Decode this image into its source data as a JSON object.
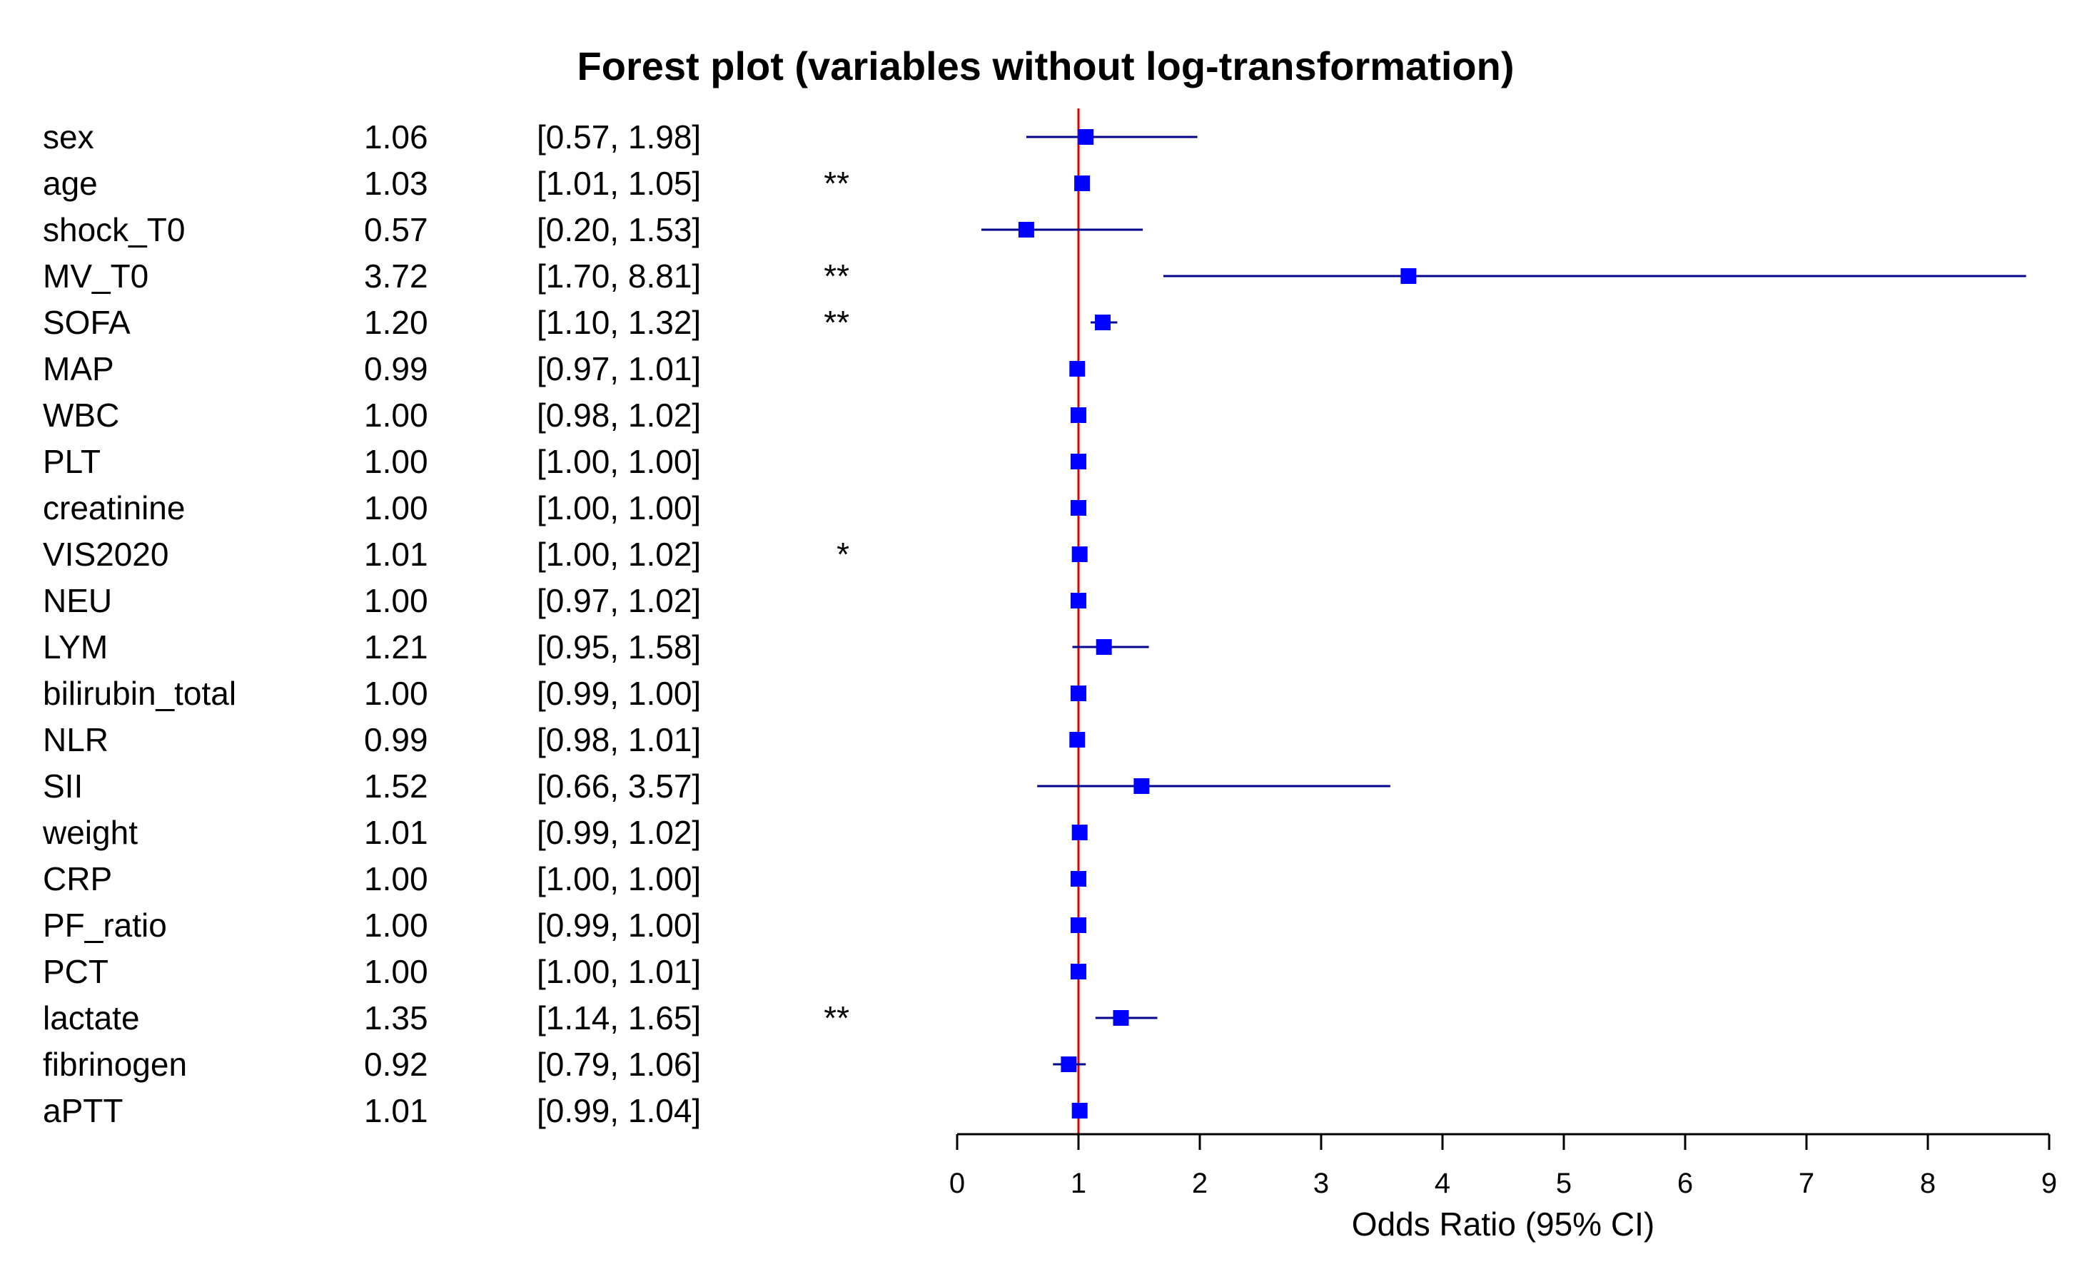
{
  "chart_data": {
    "type": "forest",
    "title": "Forest plot (variables without log-transformation)",
    "xlabel": "Odds Ratio (95% CI)",
    "xlim": [
      0,
      9
    ],
    "xticks": [
      "0",
      "1",
      "2",
      "3",
      "4",
      "5",
      "6",
      "7",
      "8",
      "9"
    ],
    "reference_line": 1,
    "colors": {
      "marker": "#0000ff",
      "ci_line": "#00008b",
      "reference": "#e00000"
    },
    "rows": [
      {
        "variable": "sex",
        "or_label": "1.06",
        "ci_label": "[0.57, 1.98]",
        "sig": "",
        "or": 1.06,
        "lo": 0.57,
        "hi": 1.98
      },
      {
        "variable": "age",
        "or_label": "1.03",
        "ci_label": "[1.01, 1.05]",
        "sig": "**",
        "or": 1.03,
        "lo": 1.01,
        "hi": 1.05
      },
      {
        "variable": "shock_T0",
        "or_label": "0.57",
        "ci_label": "[0.20, 1.53]",
        "sig": "",
        "or": 0.57,
        "lo": 0.2,
        "hi": 1.53
      },
      {
        "variable": "MV_T0",
        "or_label": "3.72",
        "ci_label": "[1.70, 8.81]",
        "sig": "**",
        "or": 3.72,
        "lo": 1.7,
        "hi": 8.81
      },
      {
        "variable": "SOFA",
        "or_label": "1.20",
        "ci_label": "[1.10, 1.32]",
        "sig": "**",
        "or": 1.2,
        "lo": 1.1,
        "hi": 1.32
      },
      {
        "variable": "MAP",
        "or_label": "0.99",
        "ci_label": "[0.97, 1.01]",
        "sig": "",
        "or": 0.99,
        "lo": 0.97,
        "hi": 1.01
      },
      {
        "variable": "WBC",
        "or_label": "1.00",
        "ci_label": "[0.98, 1.02]",
        "sig": "",
        "or": 1.0,
        "lo": 0.98,
        "hi": 1.02
      },
      {
        "variable": "PLT",
        "or_label": "1.00",
        "ci_label": "[1.00, 1.00]",
        "sig": "",
        "or": 1.0,
        "lo": 1.0,
        "hi": 1.0
      },
      {
        "variable": "creatinine",
        "or_label": "1.00",
        "ci_label": "[1.00, 1.00]",
        "sig": "",
        "or": 1.0,
        "lo": 1.0,
        "hi": 1.0
      },
      {
        "variable": "VIS2020",
        "or_label": "1.01",
        "ci_label": "[1.00, 1.02]",
        "sig": "*",
        "or": 1.01,
        "lo": 1.0,
        "hi": 1.02
      },
      {
        "variable": "NEU",
        "or_label": "1.00",
        "ci_label": "[0.97, 1.02]",
        "sig": "",
        "or": 1.0,
        "lo": 0.97,
        "hi": 1.02
      },
      {
        "variable": "LYM",
        "or_label": "1.21",
        "ci_label": "[0.95, 1.58]",
        "sig": "",
        "or": 1.21,
        "lo": 0.95,
        "hi": 1.58
      },
      {
        "variable": "bilirubin_total",
        "or_label": "1.00",
        "ci_label": "[0.99, 1.00]",
        "sig": "",
        "or": 1.0,
        "lo": 0.99,
        "hi": 1.0
      },
      {
        "variable": "NLR",
        "or_label": "0.99",
        "ci_label": "[0.98, 1.01]",
        "sig": "",
        "or": 0.99,
        "lo": 0.98,
        "hi": 1.01
      },
      {
        "variable": "SII",
        "or_label": "1.52",
        "ci_label": "[0.66, 3.57]",
        "sig": "",
        "or": 1.52,
        "lo": 0.66,
        "hi": 3.57
      },
      {
        "variable": "weight",
        "or_label": "1.01",
        "ci_label": "[0.99, 1.02]",
        "sig": "",
        "or": 1.01,
        "lo": 0.99,
        "hi": 1.02
      },
      {
        "variable": "CRP",
        "or_label": "1.00",
        "ci_label": "[1.00, 1.00]",
        "sig": "",
        "or": 1.0,
        "lo": 1.0,
        "hi": 1.0
      },
      {
        "variable": "PF_ratio",
        "or_label": "1.00",
        "ci_label": "[0.99, 1.00]",
        "sig": "",
        "or": 1.0,
        "lo": 0.99,
        "hi": 1.0
      },
      {
        "variable": "PCT",
        "or_label": "1.00",
        "ci_label": "[1.00, 1.01]",
        "sig": "",
        "or": 1.0,
        "lo": 1.0,
        "hi": 1.01
      },
      {
        "variable": "lactate",
        "or_label": "1.35",
        "ci_label": "[1.14, 1.65]",
        "sig": "**",
        "or": 1.35,
        "lo": 1.14,
        "hi": 1.65
      },
      {
        "variable": "fibrinogen",
        "or_label": "0.92",
        "ci_label": "[0.79, 1.06]",
        "sig": "",
        "or": 0.92,
        "lo": 0.79,
        "hi": 1.06
      },
      {
        "variable": "aPTT",
        "or_label": "1.01",
        "ci_label": "[0.99, 1.04]",
        "sig": "",
        "or": 1.01,
        "lo": 0.99,
        "hi": 1.04
      }
    ]
  }
}
